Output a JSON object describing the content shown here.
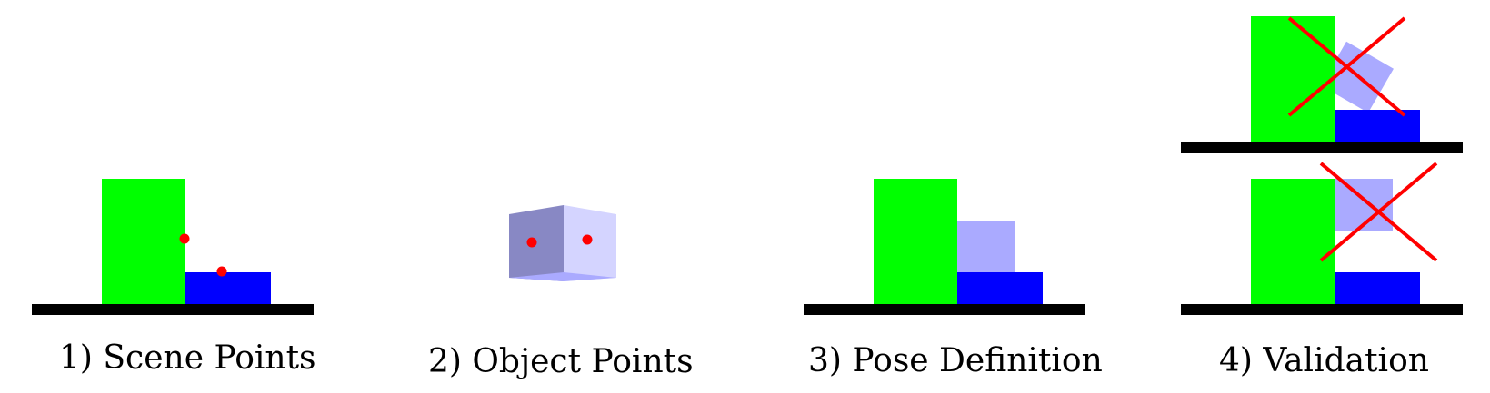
{
  "colors": {
    "ground": "#000000",
    "tall_block": "#00ff00",
    "base_block": "#0000ff",
    "object_light": "#aaaaff",
    "object_dark": "#8888c4",
    "object_face_light": "#d4d4ff",
    "point_marker": "#ff0000",
    "reject_mark": "#ff0000"
  },
  "panels": [
    {
      "caption": "1) Scene Points"
    },
    {
      "caption": "2) Object Points"
    },
    {
      "caption": "3) Pose Definition"
    },
    {
      "caption": "4) Validation"
    }
  ]
}
